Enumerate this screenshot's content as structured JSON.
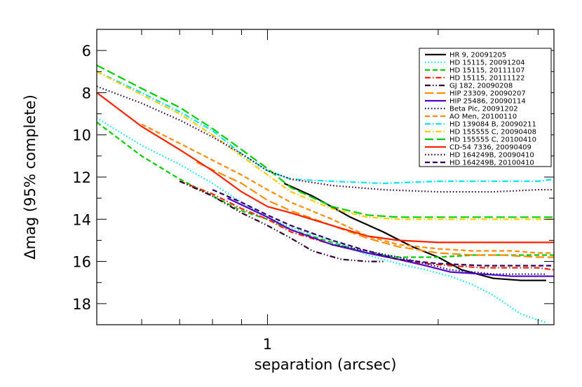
{
  "chart_data": {
    "type": "line",
    "xlabel": "separation (arcsec)",
    "ylabel": "Δmag (95% complete)",
    "x_scale": "log",
    "xlim": [
      0.5,
      3.2
    ],
    "ylim": [
      19,
      5
    ],
    "x_tick_labels": [
      {
        "value": 1,
        "label": "1"
      }
    ],
    "y_ticks": [
      6,
      8,
      10,
      12,
      14,
      16,
      18
    ],
    "grid": false,
    "legend_position": "top-right",
    "series": [
      {
        "name": "HR 9, 20091205",
        "color": "#000000",
        "dash": "solid",
        "x": [
          1.07,
          1.2,
          1.4,
          1.6,
          1.8,
          2.0,
          2.2,
          2.5,
          2.8,
          3.1
        ],
        "y": [
          12.3,
          12.9,
          13.9,
          14.6,
          15.3,
          15.8,
          16.4,
          16.8,
          16.9,
          16.9
        ]
      },
      {
        "name": "HD 15115, 20091204",
        "color": "#00e5ee",
        "dash": "dot",
        "x": [
          0.5,
          0.6,
          0.7,
          0.8,
          0.9,
          1.0,
          1.1,
          1.3,
          1.5,
          1.7,
          1.9,
          2.1,
          2.3,
          2.5,
          2.8,
          3.1
        ],
        "y": [
          9.2,
          10.5,
          11.4,
          12.3,
          13.2,
          13.9,
          14.4,
          15.0,
          15.7,
          16.1,
          16.4,
          16.7,
          17.1,
          17.6,
          18.5,
          18.9
        ]
      },
      {
        "name": "HD 15115, 20111107",
        "color": "#00cc00",
        "dash": "dash",
        "x": [
          0.5,
          0.6,
          0.7,
          0.8,
          0.9,
          1.0,
          1.1,
          1.3,
          1.5,
          1.7,
          2.0,
          2.3,
          2.6,
          3.0,
          3.2
        ],
        "y": [
          9.4,
          11.0,
          12.1,
          12.9,
          13.6,
          14.0,
          14.5,
          15.1,
          15.6,
          15.8,
          15.8,
          15.7,
          15.7,
          15.7,
          15.7
        ]
      },
      {
        "name": "HD 15115, 20111122",
        "color": "#ff2200",
        "dash": "dashdot",
        "x": [
          0.7,
          0.8,
          0.9,
          1.0,
          1.1,
          1.3,
          1.5,
          1.7,
          1.9,
          2.1,
          2.4,
          2.7,
          3.0,
          3.2
        ],
        "y": [
          12.2,
          12.8,
          13.5,
          14.0,
          14.6,
          15.2,
          15.6,
          15.9,
          16.1,
          16.2,
          16.3,
          16.3,
          16.3,
          16.4
        ]
      },
      {
        "name": "GJ 182, 20090208",
        "color": "#330033",
        "dash": "dashdotdot",
        "x": [
          0.7,
          0.8,
          0.9,
          1.0,
          1.1,
          1.2,
          1.35,
          1.5,
          1.6
        ],
        "y": [
          12.2,
          12.9,
          13.7,
          14.3,
          14.9,
          15.5,
          15.9,
          16.0,
          16.0
        ]
      },
      {
        "name": "HIP 23309, 20090207",
        "color": "#ff8c00",
        "dash": "longdash",
        "x": [
          0.75,
          0.9,
          1.0,
          1.1,
          1.3,
          1.5,
          1.7,
          2.0,
          2.3,
          2.6,
          3.0,
          3.2
        ],
        "y": [
          11.3,
          12.3,
          13.1,
          13.6,
          14.3,
          14.9,
          15.3,
          15.6,
          15.7,
          15.7,
          15.8,
          15.8
        ]
      },
      {
        "name": "HIP 25486, 20090114",
        "color": "#5500cc",
        "dash": "solid",
        "x": [
          0.85,
          1.0,
          1.1,
          1.3,
          1.5,
          1.7,
          1.9,
          2.1,
          2.4,
          2.7,
          3.0,
          3.2
        ],
        "y": [
          13.0,
          13.9,
          14.5,
          15.2,
          15.6,
          15.9,
          16.2,
          16.5,
          16.6,
          16.7,
          16.7,
          16.7
        ]
      },
      {
        "name": "Beta Pic, 20091202",
        "color": "#000088",
        "dash": "dot",
        "x": [
          1.3,
          1.5,
          1.7,
          1.9,
          2.1,
          2.3,
          2.5,
          2.8,
          3.1
        ],
        "y": [
          15.2,
          15.5,
          15.8,
          16.1,
          16.4,
          16.5,
          16.6,
          16.6,
          16.6
        ]
      },
      {
        "name": "AO Men, 20100110",
        "color": "#ff8c00",
        "dash": "dash",
        "x": [
          0.6,
          0.7,
          0.8,
          0.9,
          1.0,
          1.1,
          1.3,
          1.5,
          1.7,
          2.0,
          2.3,
          2.7,
          3.0,
          3.2
        ],
        "y": [
          9.5,
          10.4,
          11.2,
          11.9,
          12.6,
          13.2,
          14.0,
          14.8,
          15.2,
          15.4,
          15.5,
          15.5,
          15.6,
          15.6
        ]
      },
      {
        "name": "HD 139084 B, 20090211",
        "color": "#00e5ee",
        "dash": "dashdot",
        "x": [
          0.5,
          0.6,
          0.7,
          0.8,
          0.9,
          1.0,
          1.1,
          1.3,
          1.6,
          2.0,
          2.5,
          3.0,
          3.2
        ],
        "y": [
          7.0,
          8.0,
          8.9,
          9.8,
          10.9,
          11.7,
          12.1,
          12.2,
          12.3,
          12.2,
          12.2,
          12.2,
          12.1
        ]
      },
      {
        "name": "HD 155555 C, 20090408",
        "color": "#ffcc00",
        "dash": "dashdot",
        "x": [
          0.5,
          0.6,
          0.7,
          0.8,
          0.9,
          1.0,
          1.1,
          1.3,
          1.5,
          1.7,
          2.0,
          2.4,
          2.8,
          3.2
        ],
        "y": [
          7.0,
          8.1,
          9.0,
          10.0,
          11.0,
          11.9,
          12.7,
          13.5,
          13.9,
          14.0,
          14.0,
          14.0,
          14.0,
          14.0
        ]
      },
      {
        "name": "HD 155555 C, 20100410",
        "color": "#00cc00",
        "dash": "longdash",
        "x": [
          0.5,
          0.6,
          0.7,
          0.8,
          0.9,
          1.0,
          1.1,
          1.3,
          1.5,
          1.7,
          2.0,
          2.4,
          2.8,
          3.2
        ],
        "y": [
          6.7,
          7.8,
          8.7,
          9.7,
          10.7,
          11.6,
          12.5,
          13.4,
          13.8,
          13.9,
          13.9,
          13.9,
          13.9,
          13.9
        ]
      },
      {
        "name": "CD-54 7336, 20090409",
        "color": "#ff2200",
        "dash": "solid",
        "x": [
          0.5,
          0.6,
          0.7,
          0.8,
          0.9,
          1.0,
          1.1,
          1.3,
          1.5,
          1.7,
          2.0,
          2.4,
          2.8,
          3.2
        ],
        "y": [
          8.0,
          9.6,
          10.7,
          11.7,
          12.7,
          13.4,
          13.7,
          14.3,
          14.8,
          15.0,
          15.1,
          15.1,
          15.1,
          15.1
        ]
      },
      {
        "name": "HD 164249B, 20090410",
        "color": "#330033",
        "dash": "dot",
        "x": [
          0.5,
          0.6,
          0.7,
          0.8,
          0.9,
          1.0,
          1.1,
          1.3,
          1.6,
          2.0,
          2.5,
          3.0,
          3.2
        ],
        "y": [
          7.7,
          8.5,
          9.3,
          10.1,
          10.9,
          11.7,
          12.1,
          12.4,
          12.6,
          12.7,
          12.7,
          12.6,
          12.6
        ]
      },
      {
        "name": "HD 164249B, 20100410",
        "color": "#330066",
        "dash": "dash",
        "x": [
          0.8,
          0.9,
          1.0,
          1.1,
          1.3,
          1.5,
          1.7,
          2.0,
          2.4,
          2.8,
          3.2
        ],
        "y": [
          12.6,
          13.2,
          13.8,
          14.3,
          15.0,
          15.5,
          15.9,
          16.1,
          16.2,
          16.2,
          16.2
        ]
      }
    ]
  }
}
